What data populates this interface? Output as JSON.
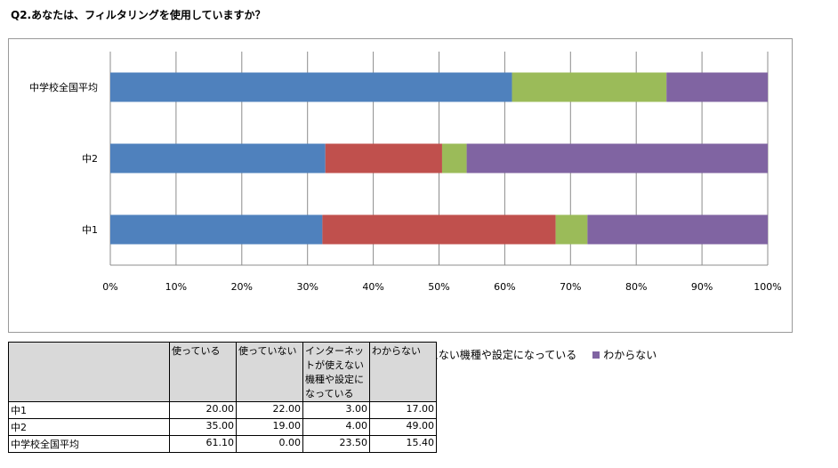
{
  "question": "Q2.あなたは、フィルタリングを使用していますか？",
  "chart_data": {
    "type": "bar",
    "orientation": "horizontal",
    "stacked": "percent",
    "categories": [
      "中学校全国平均",
      "中2",
      "中1"
    ],
    "series": [
      {
        "name": "使っている",
        "color": "#4f81bd",
        "values": [
          61.1,
          35.0,
          20.0
        ]
      },
      {
        "name": "使っていない",
        "color": "#c0504d",
        "values": [
          0.0,
          19.0,
          22.0
        ]
      },
      {
        "name": "インターネットが使えない機種や設定になっている",
        "color": "#9bbb59",
        "values": [
          23.5,
          4.0,
          3.0
        ]
      },
      {
        "name": "わからない",
        "color": "#8064a2",
        "values": [
          15.4,
          49.0,
          17.0
        ]
      }
    ],
    "xlim": [
      0,
      100
    ],
    "xticks": [
      "0%",
      "10%",
      "20%",
      "30%",
      "40%",
      "50%",
      "60%",
      "70%",
      "80%",
      "90%",
      "100%"
    ],
    "grid": true,
    "legend": "bottom"
  },
  "table": {
    "headers": [
      "",
      "使っている",
      "使っていない",
      "インターネットが使えない機種や設定になっている",
      "わからない"
    ],
    "rows": [
      {
        "label": "中1",
        "values": [
          "20.00",
          "22.00",
          "3.00",
          "17.00"
        ]
      },
      {
        "label": "中2",
        "values": [
          "35.00",
          "19.00",
          "4.00",
          "49.00"
        ]
      },
      {
        "label": "中学校全国平均",
        "values": [
          "61.10",
          "0.00",
          "23.50",
          "15.40"
        ]
      }
    ]
  }
}
